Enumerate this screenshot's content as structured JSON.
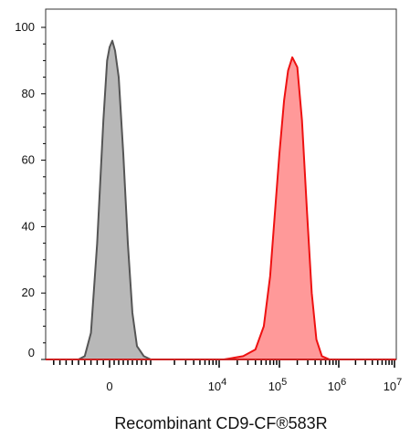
{
  "chart_data": {
    "type": "area",
    "title": "",
    "xlabel": "Recombinant CD9-CF®583R",
    "ylabel": "",
    "x_scale": "biexponential",
    "xlim": [
      -1000,
      10000000
    ],
    "ylim": [
      0,
      105
    ],
    "grid": false,
    "legend": "none",
    "y_ticks": [
      {
        "value": 0,
        "label": "0"
      },
      {
        "value": 20,
        "label": "20"
      },
      {
        "value": 40,
        "label": "40"
      },
      {
        "value": 60,
        "label": "60"
      },
      {
        "value": 80,
        "label": "80"
      },
      {
        "value": 100,
        "label": "100"
      }
    ],
    "x_ticks": [
      {
        "value": 0,
        "base": "0",
        "exp": ""
      },
      {
        "value": 10000,
        "base": "10",
        "exp": "4"
      },
      {
        "value": 100000,
        "base": "10",
        "exp": "5"
      },
      {
        "value": 1000000,
        "base": "10",
        "exp": "6"
      },
      {
        "value": 10000000,
        "base": "10",
        "exp": "7"
      }
    ],
    "series": [
      {
        "color": "#555555",
        "fill": "#b8b8b8",
        "peak_x": 100,
        "peak_y": 96,
        "points": [
          [
            -500,
            0
          ],
          [
            -400,
            1
          ],
          [
            -300,
            8
          ],
          [
            -200,
            35
          ],
          [
            -100,
            72
          ],
          [
            -40,
            90
          ],
          [
            0,
            94
          ],
          [
            60,
            96
          ],
          [
            120,
            93
          ],
          [
            200,
            85
          ],
          [
            300,
            62
          ],
          [
            400,
            35
          ],
          [
            500,
            14
          ],
          [
            600,
            4
          ],
          [
            750,
            1
          ],
          [
            900,
            0
          ]
        ]
      },
      {
        "color": "#ee1111",
        "fill": "#ff9999",
        "peak_x": 180000,
        "peak_y": 91,
        "points": [
          [
            12000,
            0
          ],
          [
            25000,
            1
          ],
          [
            40000,
            3
          ],
          [
            55000,
            10
          ],
          [
            70000,
            25
          ],
          [
            85000,
            45
          ],
          [
            100000,
            62
          ],
          [
            120000,
            78
          ],
          [
            140000,
            87
          ],
          [
            165000,
            91
          ],
          [
            200000,
            88
          ],
          [
            240000,
            72
          ],
          [
            290000,
            45
          ],
          [
            350000,
            20
          ],
          [
            420000,
            6
          ],
          [
            520000,
            1
          ],
          [
            700000,
            0
          ]
        ]
      }
    ]
  }
}
